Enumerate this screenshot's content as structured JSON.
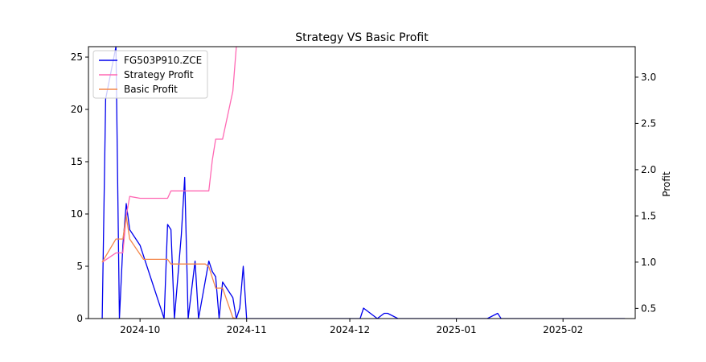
{
  "chart_data": {
    "type": "line",
    "title": "Strategy VS Basic Profit",
    "xlabel": "",
    "ylabel_left": "",
    "ylabel_right": "Profit",
    "xlim": [
      "2024-09-16",
      "2025-02-22"
    ],
    "ylim_left": [
      0,
      26
    ],
    "ylim_right": [
      0.39,
      3.33
    ],
    "x_ticks": [
      "2024-10",
      "2024-11",
      "2024-12",
      "2025-01",
      "2025-02"
    ],
    "x_tick_dates": [
      "2024-10-01",
      "2024-11-01",
      "2024-12-01",
      "2025-01-01",
      "2025-02-01"
    ],
    "y_ticks_left": [
      0,
      5,
      10,
      15,
      20,
      25
    ],
    "y_ticks_right": [
      0.5,
      1.0,
      1.5,
      2.0,
      2.5,
      3.0
    ],
    "grid": false,
    "legend_position": "top-left",
    "series": [
      {
        "name": "FG503P910.ZCE",
        "axis": "left",
        "color": "#0000ee",
        "points": [
          [
            "2024-09-20",
            0
          ],
          [
            "2024-09-21",
            21
          ],
          [
            "2024-09-24",
            26
          ],
          [
            "2024-09-25",
            0
          ],
          [
            "2024-09-26",
            7
          ],
          [
            "2024-09-27",
            11
          ],
          [
            "2024-09-28",
            8.5
          ],
          [
            "2024-10-01",
            7
          ],
          [
            "2024-10-08",
            0
          ],
          [
            "2024-10-09",
            9
          ],
          [
            "2024-10-10",
            8.5
          ],
          [
            "2024-10-11",
            0
          ],
          [
            "2024-10-13",
            8
          ],
          [
            "2024-10-14",
            13.5
          ],
          [
            "2024-10-15",
            0
          ],
          [
            "2024-10-17",
            5.5
          ],
          [
            "2024-10-18",
            0
          ],
          [
            "2024-10-21",
            5.5
          ],
          [
            "2024-10-22",
            4.5
          ],
          [
            "2024-10-23",
            4
          ],
          [
            "2024-10-24",
            0
          ],
          [
            "2024-10-25",
            3.5
          ],
          [
            "2024-10-28",
            2
          ],
          [
            "2024-10-29",
            0
          ],
          [
            "2024-10-30",
            1
          ],
          [
            "2024-10-31",
            5
          ],
          [
            "2024-11-01",
            0
          ],
          [
            "2024-12-04",
            0
          ],
          [
            "2024-12-05",
            1
          ],
          [
            "2024-12-09",
            0
          ],
          [
            "2024-12-11",
            0.5
          ],
          [
            "2024-12-12",
            0.5
          ],
          [
            "2024-12-15",
            0
          ],
          [
            "2025-01-10",
            0
          ],
          [
            "2025-01-13",
            0.5
          ],
          [
            "2025-01-14",
            0
          ],
          [
            "2025-02-19",
            0
          ]
        ]
      },
      {
        "name": "Strategy Profit",
        "axis": "right",
        "color": "#ff69b4",
        "points": [
          [
            "2024-09-20",
            1.0
          ],
          [
            "2024-09-24",
            1.1
          ],
          [
            "2024-09-26",
            1.1
          ],
          [
            "2024-09-27",
            1.5
          ],
          [
            "2024-09-28",
            1.71
          ],
          [
            "2024-10-01",
            1.69
          ],
          [
            "2024-10-09",
            1.69
          ],
          [
            "2024-10-10",
            1.77
          ],
          [
            "2024-10-21",
            1.77
          ],
          [
            "2024-10-22",
            2.1
          ],
          [
            "2024-10-23",
            2.33
          ],
          [
            "2024-10-25",
            2.33
          ],
          [
            "2024-10-28",
            2.85
          ],
          [
            "2024-10-29",
            3.33
          ]
        ]
      },
      {
        "name": "Basic Profit",
        "axis": "right",
        "color": "#f4874b",
        "points": [
          [
            "2024-09-20",
            1.0
          ],
          [
            "2024-09-24",
            1.25
          ],
          [
            "2024-09-26",
            1.25
          ],
          [
            "2024-09-27",
            1.5
          ],
          [
            "2024-09-28",
            1.25
          ],
          [
            "2024-10-02",
            1.03
          ],
          [
            "2024-10-09",
            1.03
          ],
          [
            "2024-10-10",
            0.98
          ],
          [
            "2024-10-20",
            0.98
          ],
          [
            "2024-10-21",
            0.95
          ],
          [
            "2024-10-23",
            0.72
          ],
          [
            "2024-10-25",
            0.72
          ],
          [
            "2024-10-28",
            0.4
          ],
          [
            "2024-10-29",
            0.39
          ]
        ]
      }
    ]
  }
}
